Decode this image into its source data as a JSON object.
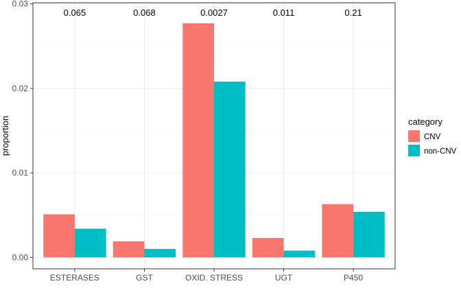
{
  "chart_data": {
    "type": "bar",
    "title": "",
    "xlabel": "",
    "ylabel": "proportion",
    "ylim": [
      0,
      0.03
    ],
    "y_ticks": [
      {
        "value": 0.0,
        "label": "0.00"
      },
      {
        "value": 0.01,
        "label": "0.01"
      },
      {
        "value": 0.02,
        "label": "0.02"
      },
      {
        "value": 0.03,
        "label": "0.03"
      }
    ],
    "grid": true,
    "categories": [
      "ESTERASES",
      "GST",
      "OXID. STRESS",
      "UGT",
      "P450"
    ],
    "series": [
      {
        "name": "CNV",
        "color": "#F8766D",
        "values": [
          0.0051,
          0.0019,
          0.0277,
          0.0023,
          0.0063
        ]
      },
      {
        "name": "non-CNV",
        "color": "#00BFC4",
        "values": [
          0.0034,
          0.001,
          0.0208,
          0.0008,
          0.0054
        ]
      }
    ],
    "annotations": [
      "0.065",
      "0.068",
      "0.0027",
      "0.011",
      "0.21"
    ],
    "legend": {
      "title": "category",
      "placement": "right"
    }
  }
}
